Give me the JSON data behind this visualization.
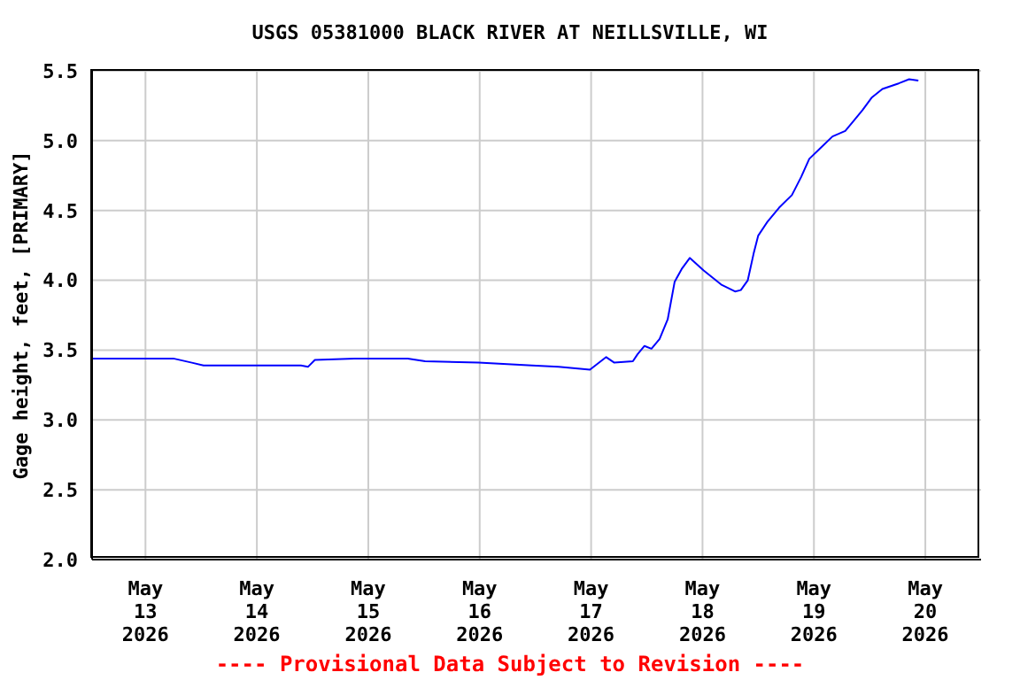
{
  "chart_data": {
    "type": "line",
    "title": "USGS 05381000 BLACK RIVER AT NEILLSVILLE, WI",
    "ylabel": "Gage height, feet, [PRIMARY]",
    "annotations": [
      "---- Provisional Data Subject to Revision ----"
    ],
    "x": [
      "2026-05-12T12:30",
      "2026-05-13T06:00",
      "2026-05-13T10:00",
      "2026-05-13T12:30",
      "2026-05-14T09:30",
      "2026-05-14T11:00",
      "2026-05-14T12:30",
      "2026-05-14T21:00",
      "2026-05-15T08:30",
      "2026-05-15T12:15",
      "2026-05-15T23:45",
      "2026-05-16T11:15",
      "2026-05-16T17:00",
      "2026-05-16T23:45",
      "2026-05-17T03:15",
      "2026-05-17T05:00",
      "2026-05-17T09:00",
      "2026-05-17T10:00",
      "2026-05-17T11:30",
      "2026-05-17T13:00",
      "2026-05-17T14:45",
      "2026-05-17T16:30",
      "2026-05-17T18:00",
      "2026-05-17T19:30",
      "2026-05-17T21:15",
      "2026-05-18T00:15",
      "2026-05-18T04:00",
      "2026-05-18T07:00",
      "2026-05-18T08:15",
      "2026-05-18T09:45",
      "2026-05-18T11:00",
      "2026-05-18T12:00",
      "2026-05-18T14:00",
      "2026-05-18T16:30",
      "2026-05-18T19:15",
      "2026-05-18T21:15",
      "2026-05-18T23:00",
      "2026-05-19T01:30",
      "2026-05-19T04:00",
      "2026-05-19T06:45",
      "2026-05-19T08:30",
      "2026-05-19T10:30",
      "2026-05-19T12:30",
      "2026-05-19T14:45",
      "2026-05-19T18:15",
      "2026-05-19T20:30",
      "2026-05-19T22:30"
    ],
    "series": [
      {
        "color": "#0000ff",
        "values": [
          3.44,
          3.44,
          3.41,
          3.39,
          3.39,
          3.38,
          3.43,
          3.44,
          3.44,
          3.42,
          3.41,
          3.39,
          3.38,
          3.36,
          3.45,
          3.41,
          3.42,
          3.47,
          3.53,
          3.51,
          3.58,
          3.72,
          3.99,
          4.08,
          4.16,
          4.07,
          3.97,
          3.92,
          3.93,
          4.0,
          4.19,
          4.32,
          4.42,
          4.52,
          4.61,
          4.74,
          4.87,
          4.95,
          5.03,
          5.07,
          5.14,
          5.22,
          5.31,
          5.37,
          5.41,
          5.44,
          5.43
        ]
      }
    ],
    "xlim": [
      "2026-05-12T12:30",
      "2026-05-20T12:00"
    ],
    "xticks": [
      {
        "value": "2026-05-13",
        "label": "May 13 2026"
      },
      {
        "value": "2026-05-14",
        "label": "May 14 2026"
      },
      {
        "value": "2026-05-15",
        "label": "May 15 2026"
      },
      {
        "value": "2026-05-16",
        "label": "May 16 2026"
      },
      {
        "value": "2026-05-17",
        "label": "May 17 2026"
      },
      {
        "value": "2026-05-18",
        "label": "May 18 2026"
      },
      {
        "value": "2026-05-19",
        "label": "May 19 2026"
      },
      {
        "value": "2026-05-20",
        "label": "May 20 2026"
      }
    ],
    "ylim": [
      2.0,
      5.5
    ],
    "yticks": [
      {
        "value": 2,
        "label": "2.0"
      },
      {
        "value": 2.5,
        "label": "2.5"
      },
      {
        "value": 3,
        "label": "3.0"
      },
      {
        "value": 3.5,
        "label": "3.5"
      },
      {
        "value": 4,
        "label": "4.0"
      },
      {
        "value": 4.5,
        "label": "4.5"
      },
      {
        "value": 5,
        "label": "5.0"
      },
      {
        "value": 5.5,
        "label": "5.5"
      }
    ],
    "grid": true,
    "legend": false,
    "marker": "none",
    "line_style": "solid"
  }
}
